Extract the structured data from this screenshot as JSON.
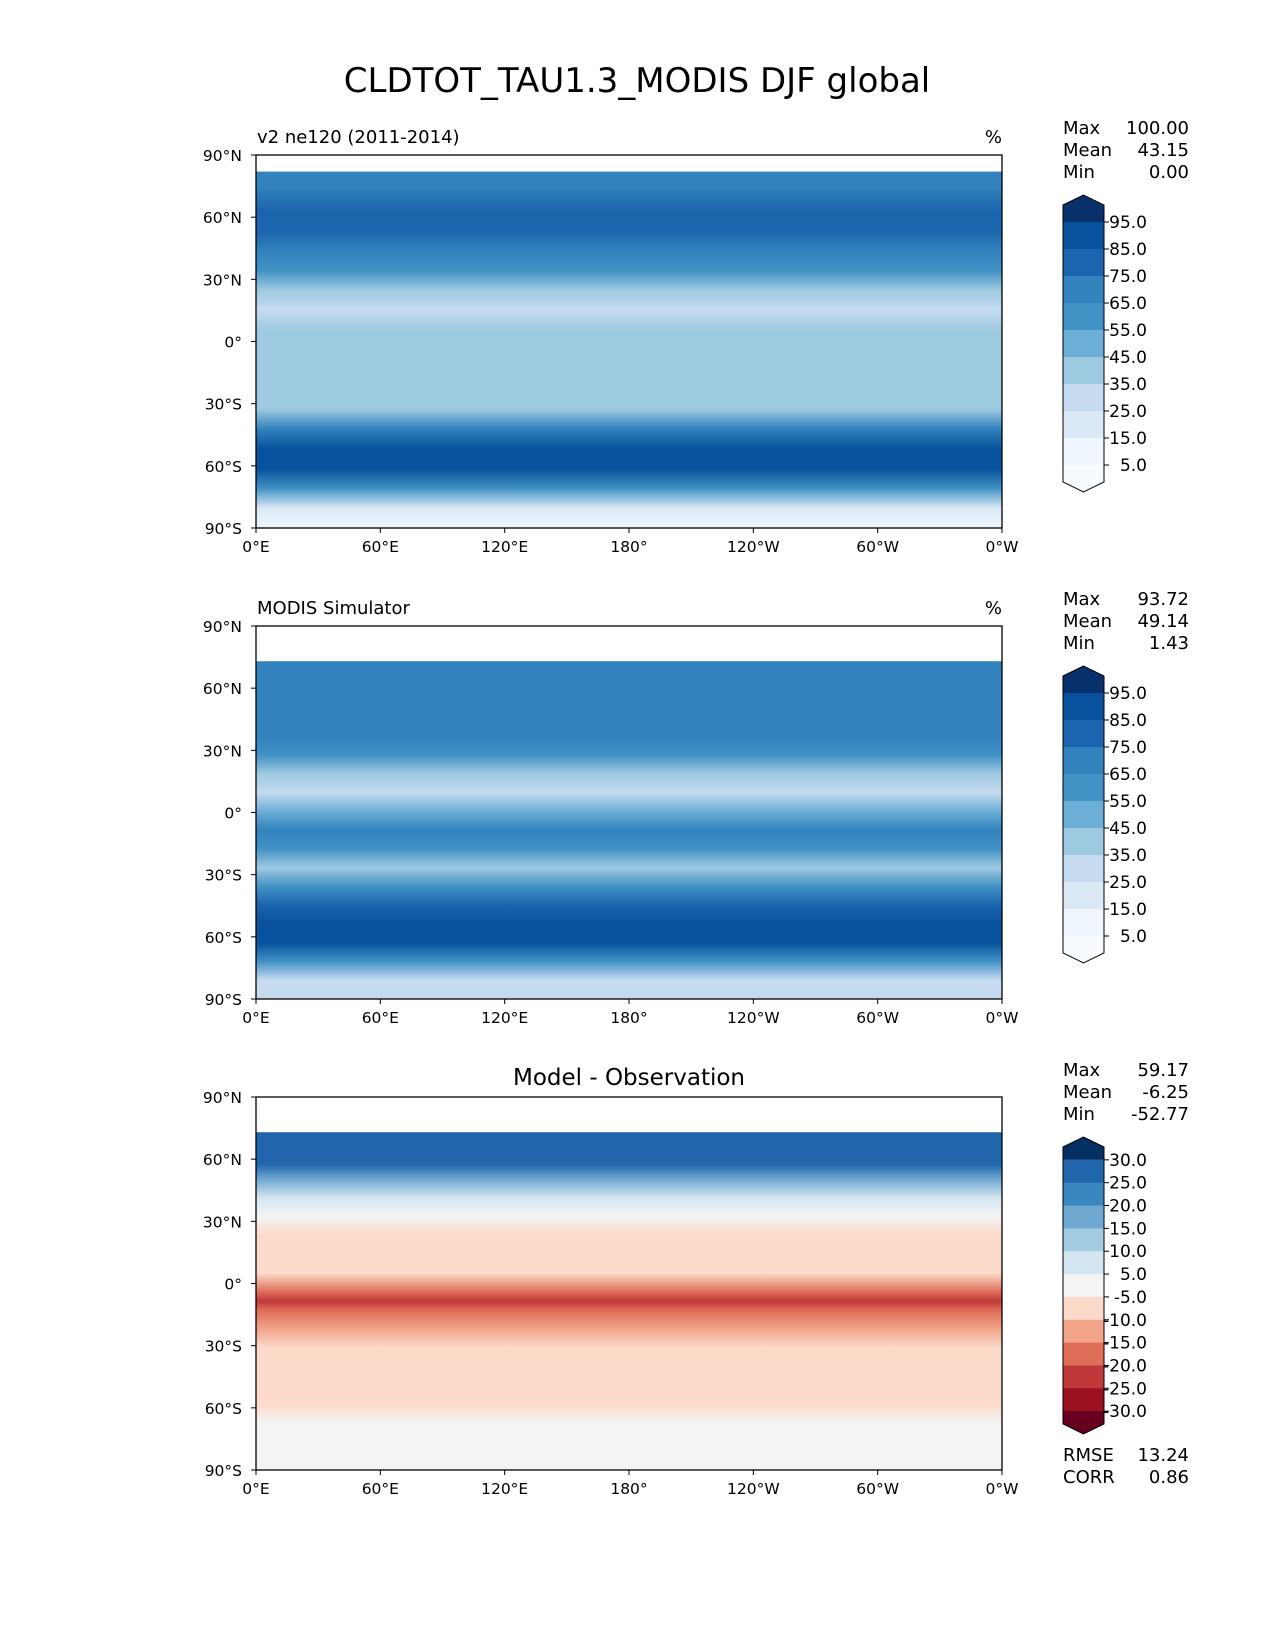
{
  "figure": {
    "title": "CLDTOT_TAU1.3_MODIS DJF global",
    "ytick_labels": [
      "90°N",
      "60°N",
      "30°N",
      "0°",
      "30°S",
      "60°S",
      "90°S"
    ],
    "xtick_labels": [
      "0°E",
      "60°E",
      "120°E",
      "180°",
      "120°W",
      "60°W",
      "0°W"
    ]
  },
  "chart_data": [
    {
      "type": "heatmap",
      "panel": "model",
      "left_title": "v2 ne120 (2011-2014)",
      "units": "%",
      "stats": [
        {
          "label": "Max",
          "value": "100.00"
        },
        {
          "label": "Mean",
          "value": "43.15"
        },
        {
          "label": "Min",
          "value": "0.00"
        }
      ],
      "colorbar_labels": [
        "95.0",
        "85.0",
        "75.0",
        "65.0",
        "55.0",
        "45.0",
        "35.0",
        "25.0",
        "15.0",
        "5.0"
      ],
      "colorbar_colors": [
        "#08306b",
        "#08519c",
        "#1c64ad",
        "#3182bd",
        "#4292c6",
        "#6baed6",
        "#9ecae1",
        "#c6dbef",
        "#dbe9f6",
        "#eef5fc",
        "#f7fbff"
      ],
      "xlim": [
        0,
        360
      ],
      "ylim": [
        -90,
        90
      ],
      "zonal_mean_profile": {
        "lat": [
          82,
          70,
          60,
          50,
          40,
          30,
          20,
          10,
          0,
          -10,
          -20,
          -30,
          -40,
          -50,
          -60,
          -70,
          -80,
          -90
        ],
        "value": [
          70,
          75,
          78,
          72,
          62,
          45,
          30,
          38,
          45,
          42,
          38,
          45,
          72,
          85,
          88,
          60,
          22,
          18
        ]
      }
    },
    {
      "type": "heatmap",
      "panel": "observation",
      "left_title": "MODIS Simulator",
      "units": "%",
      "stats": [
        {
          "label": "Max",
          "value": "93.72"
        },
        {
          "label": "Mean",
          "value": "49.14"
        },
        {
          "label": "Min",
          "value": "1.43"
        }
      ],
      "colorbar_labels": [
        "95.0",
        "85.0",
        "75.0",
        "65.0",
        "55.0",
        "45.0",
        "35.0",
        "25.0",
        "15.0",
        "5.0"
      ],
      "colorbar_colors": [
        "#08306b",
        "#08519c",
        "#1c64ad",
        "#3182bd",
        "#4292c6",
        "#6baed6",
        "#9ecae1",
        "#c6dbef",
        "#dbe9f6",
        "#eef5fc",
        "#f7fbff"
      ],
      "xlim": [
        0,
        360
      ],
      "ylim": [
        -90,
        90
      ],
      "zonal_mean_profile": {
        "lat": [
          73,
          60,
          50,
          40,
          30,
          20,
          10,
          0,
          -10,
          -20,
          -30,
          -40,
          -50,
          -60,
          -70,
          -80,
          -90
        ],
        "value": [
          70,
          68,
          65,
          60,
          45,
          35,
          50,
          65,
          58,
          45,
          55,
          78,
          88,
          90,
          62,
          30,
          28
        ]
      }
    },
    {
      "type": "heatmap",
      "panel": "difference",
      "center_title": "Model - Observation",
      "stats": [
        {
          "label": "Max",
          "value": "59.17"
        },
        {
          "label": "Mean",
          "value": "-6.25"
        },
        {
          "label": "Min",
          "value": "-52.77"
        }
      ],
      "extra_stats": [
        {
          "label": "RMSE",
          "value": "13.24"
        },
        {
          "label": "CORR",
          "value": "0.86"
        }
      ],
      "colorbar_labels": [
        "30.0",
        "25.0",
        "20.0",
        "15.0",
        "10.0",
        "5.0",
        "-5.0",
        "-10.0",
        "-15.0",
        "-20.0",
        "-25.0",
        "-30.0"
      ],
      "colorbar_colors": [
        "#053061",
        "#2166ac",
        "#3a87c0",
        "#6fa8d1",
        "#a3cbe2",
        "#d4e6f1",
        "#f4f4f4",
        "#fbdac9",
        "#f2a58b",
        "#de6e58",
        "#c0393a",
        "#99111f",
        "#67001f"
      ],
      "xlim": [
        0,
        360
      ],
      "ylim": [
        -90,
        90
      ],
      "zonal_mean_profile": {
        "lat": [
          73,
          65,
          55,
          45,
          35,
          25,
          15,
          5,
          0,
          -5,
          -15,
          -25,
          -35,
          -45,
          -55,
          -65,
          -75,
          -90
        ],
        "value": [
          28,
          18,
          6,
          -2,
          -6,
          -8,
          -10,
          -18,
          -22,
          -20,
          -12,
          -8,
          -6,
          -6,
          -6,
          -4,
          2,
          0
        ]
      }
    }
  ]
}
